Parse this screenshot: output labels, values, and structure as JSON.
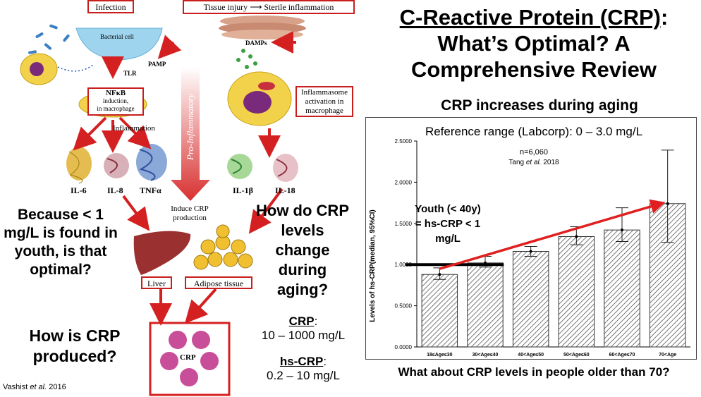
{
  "slide": {
    "title_line1": "C-Reactive Protein (CRP)",
    "title_colon": ":",
    "title_line2": "What’s Optimal? A",
    "title_line3": "Comprehensive Review",
    "subtitle": "CRP increases during aging",
    "question_age70": "What about CRP levels in people older than 70?"
  },
  "diagram": {
    "infection_label": "Infection",
    "tissue_injury_label": "Tissue injury",
    "sterile_inflammation_label": "Sterile inflammation",
    "bacterial_cell_label": "Bacterial cell",
    "pamp_label": "PAMP",
    "tlr_label": "TLR",
    "damps_label": "DAMPs",
    "nfkb_label": "NFκB",
    "nfkb_sub": "induction,",
    "nfkb_sub2": "in macrophage",
    "inflammation_label": "Inflammation",
    "inflammasome_label": "Inflammasome activation in macrophage",
    "il6": "IL-6",
    "il8": "IL-8",
    "tnfa": "TNFα",
    "il1b": "IL-1β",
    "il18": "IL-18",
    "pro_inflammatory": "Pro-Inflammatory",
    "induce_crp": "Induce CRP production",
    "liver_label": "Liver",
    "adipose_label": "Adipose tissue",
    "crp_label": "CRP",
    "citation": "Vashist",
    "citation_etal": "et al.",
    "citation_year": "2016"
  },
  "left_text": {
    "because": "Because < 1 mg/L is found in youth, is that optimal?",
    "how_produced": "How is CRP produced?",
    "how_change": "How do CRP levels change during aging?",
    "crp_head": "CRP",
    "crp_colon": ":",
    "crp_range": "10 – 1000 mg/L",
    "hscrp_head": "hs-CRP",
    "hscrp_colon": ":",
    "hscrp_range": "0.2 – 10 mg/L"
  },
  "chart_data": {
    "type": "bar",
    "reference": "Reference range (Labcorp): 0 – 3.0 mg/L",
    "n_label": "n=6,060",
    "source": "Tang",
    "source_etal": "et al.",
    "source_year": "2018",
    "ylabel": "Levels of hs-CRP(median, 95%CI)",
    "ylim": [
      0,
      2.5
    ],
    "yticks": [
      0,
      0.5,
      1.0,
      1.5,
      2.0,
      2.5
    ],
    "ytick_labels": [
      "0.0000",
      "0.5000",
      "1.0000",
      "1.5000",
      "2.0000",
      "2.5000"
    ],
    "categories": [
      "18≤Age≤30",
      "30<Age≤40",
      "40<Age≤50",
      "50<Age≤60",
      "60<Age≤70",
      "70<Age"
    ],
    "values": [
      0.88,
      1.02,
      1.16,
      1.34,
      1.42,
      1.74
    ],
    "ci_low": [
      0.82,
      0.97,
      1.1,
      1.24,
      1.28,
      1.27
    ],
    "ci_high": [
      0.96,
      1.1,
      1.22,
      1.46,
      1.69,
      2.39
    ],
    "reference_line": 1.0,
    "annotation": "Youth (< 40y) = hs-CRP < 1 mg/L",
    "annotation_line1": "Youth (< 40y)",
    "annotation_line2": "= hs-CRP < 1",
    "annotation_line3": "mg/L",
    "colors": {
      "trend_arrow": "#e02020",
      "bars": "#777777",
      "reference_line": "#000000"
    }
  }
}
